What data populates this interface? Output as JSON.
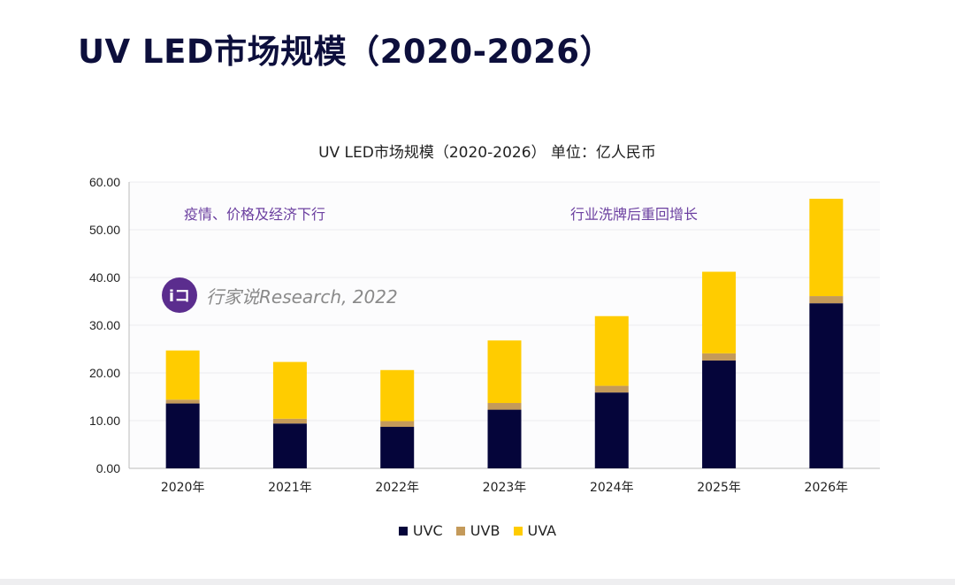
{
  "page_title": "UV LED市场规模（2020-2026）",
  "chart_data": {
    "type": "bar",
    "stacked": true,
    "title": "UV LED市场规模（2020-2026） 单位：亿人民币",
    "xlabel": "",
    "ylabel": "",
    "categories": [
      "2020年",
      "2021年",
      "2022年",
      "2023年",
      "2024年",
      "2025年",
      "2026年"
    ],
    "series": [
      {
        "name": "UVC",
        "color": "#05053a",
        "values": [
          13.6,
          9.4,
          8.7,
          12.3,
          15.9,
          22.6,
          34.6
        ]
      },
      {
        "name": "UVB",
        "color": "#c49a5a",
        "values": [
          0.8,
          1.0,
          1.2,
          1.4,
          1.4,
          1.5,
          1.5
        ]
      },
      {
        "name": "UVA",
        "color": "#ffcc00",
        "values": [
          10.3,
          11.9,
          10.7,
          13.1,
          14.6,
          17.1,
          20.4
        ]
      }
    ],
    "ylim": [
      0,
      60
    ],
    "yticks": [
      "0.00",
      "10.00",
      "20.00",
      "30.00",
      "40.00",
      "50.00",
      "60.00"
    ],
    "grid": true,
    "legend_position": "bottom",
    "annotations": [
      "疫情、价格及经济下行",
      "行业洗牌后重回增长"
    ],
    "watermark": "行家说Research, 2022"
  }
}
